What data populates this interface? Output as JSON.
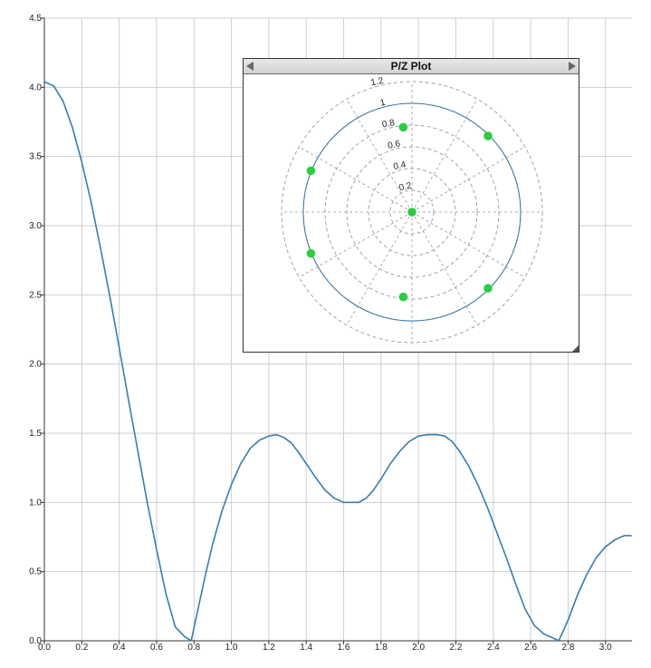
{
  "chart_data": [
    {
      "type": "line",
      "title": "",
      "xlabel": "",
      "ylabel": "",
      "xlim": [
        0,
        3.14159
      ],
      "ylim": [
        0,
        4.5
      ],
      "grid": true,
      "x_ticks": [
        "0.0",
        "0.2",
        "0.4",
        "0.6",
        "0.8",
        "1.0",
        "1.2",
        "1.4",
        "1.6",
        "1.8",
        "2.0",
        "2.2",
        "2.4",
        "2.6",
        "2.8",
        "3.0"
      ],
      "y_ticks": [
        "0.0",
        "0.5",
        "1.0",
        "1.5",
        "2.0",
        "2.5",
        "3.0",
        "3.5",
        "4.0",
        "4.5"
      ],
      "series": [
        {
          "color": "#3a7cb0",
          "x": [
            0.0,
            0.05,
            0.1,
            0.15,
            0.2,
            0.25,
            0.3,
            0.35,
            0.4,
            0.45,
            0.5,
            0.55,
            0.6,
            0.65,
            0.7,
            0.75,
            0.785,
            0.82,
            0.86,
            0.9,
            0.95,
            1.0,
            1.05,
            1.1,
            1.15,
            1.2,
            1.24,
            1.28,
            1.32,
            1.36,
            1.4,
            1.45,
            1.5,
            1.55,
            1.6,
            1.65,
            1.68,
            1.72,
            1.76,
            1.8,
            1.85,
            1.9,
            1.95,
            2.0,
            2.05,
            2.1,
            2.14,
            2.18,
            2.22,
            2.27,
            2.32,
            2.37,
            2.42,
            2.47,
            2.52,
            2.57,
            2.62,
            2.67,
            2.72,
            2.75,
            2.8,
            2.85,
            2.9,
            2.95,
            3.0,
            3.05,
            3.1,
            3.14
          ],
          "y": [
            4.04,
            4.01,
            3.9,
            3.71,
            3.46,
            3.17,
            2.84,
            2.49,
            2.12,
            1.74,
            1.37,
            1.0,
            0.66,
            0.34,
            0.1,
            0.03,
            0.0,
            0.22,
            0.47,
            0.7,
            0.94,
            1.13,
            1.28,
            1.39,
            1.45,
            1.48,
            1.49,
            1.47,
            1.43,
            1.36,
            1.28,
            1.18,
            1.09,
            1.03,
            1.0,
            1.0,
            1.0,
            1.03,
            1.09,
            1.17,
            1.28,
            1.37,
            1.44,
            1.48,
            1.49,
            1.49,
            1.48,
            1.44,
            1.37,
            1.26,
            1.12,
            0.96,
            0.78,
            0.6,
            0.41,
            0.23,
            0.11,
            0.05,
            0.02,
            0.0,
            0.15,
            0.33,
            0.48,
            0.6,
            0.68,
            0.73,
            0.76,
            0.76
          ]
        }
      ]
    },
    {
      "type": "scatter",
      "title": "P/Z Plot",
      "subtype": "polar pole-zero",
      "ring_labels": [
        "0.2",
        "0.4",
        "0.6",
        "0.8",
        "1",
        "1.2"
      ],
      "ring_values": [
        0.2,
        0.4,
        0.6,
        0.8,
        1.0,
        1.2
      ],
      "unit_circle": 1.0,
      "rlim": 1.2,
      "spoke_step_deg": 30,
      "marker_color": "#2ecc40",
      "circle_color": "#3a7cb0",
      "points": [
        {
          "re": 0.0,
          "im": 0.0
        },
        {
          "re": -0.08,
          "im": 0.78
        },
        {
          "re": 0.7,
          "im": 0.7
        },
        {
          "re": -0.93,
          "im": 0.38
        },
        {
          "re": -0.93,
          "im": -0.38
        },
        {
          "re": -0.08,
          "im": -0.78
        },
        {
          "re": 0.7,
          "im": -0.7
        }
      ]
    }
  ]
}
